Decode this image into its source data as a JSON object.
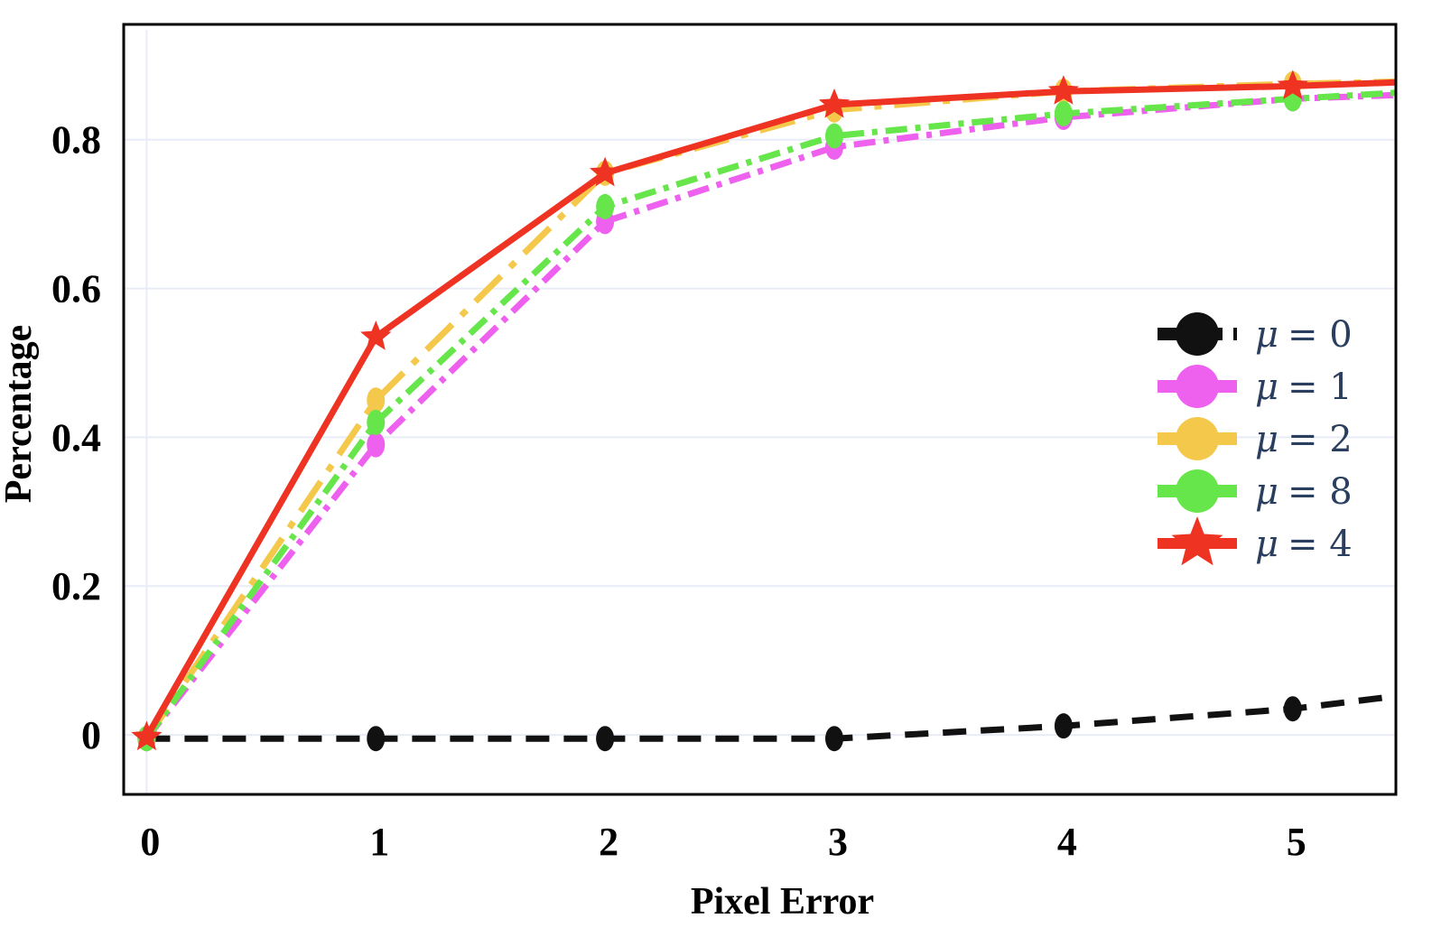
{
  "chart_data": {
    "type": "line",
    "title": "",
    "xlabel": "Pixel Error",
    "ylabel": "Percentage",
    "x": [
      0,
      1,
      2,
      3,
      4,
      5
    ],
    "xlim": [
      -0.1,
      5.45
    ],
    "ylim": [
      -0.08,
      0.955
    ],
    "x_ticks": [
      "0",
      "1",
      "2",
      "3",
      "4",
      "5"
    ],
    "y_ticks": [
      {
        "value": 0,
        "label": "0"
      },
      {
        "value": 0.2,
        "label": "0.2"
      },
      {
        "value": 0.4,
        "label": "0.4"
      },
      {
        "value": 0.6,
        "label": "0.6"
      },
      {
        "value": 0.8,
        "label": "0.8"
      }
    ],
    "grid": true,
    "legend_position": "right",
    "series": [
      {
        "name": "μ = 0",
        "legend_symbol": "μ",
        "legend_value": "= 0",
        "color": "#111111",
        "dash": "dash",
        "marker": "circle",
        "x": [
          0,
          1,
          2,
          3,
          4,
          5,
          5.45
        ],
        "values": [
          -0.005,
          -0.005,
          -0.005,
          -0.005,
          0.012,
          0.035,
          0.052
        ]
      },
      {
        "name": "μ = 1",
        "legend_symbol": "μ",
        "legend_value": "= 1",
        "color": "#ee60ee",
        "dash": "dashdot",
        "marker": "circle",
        "x": [
          0,
          1,
          2,
          3,
          4,
          5,
          5.45
        ],
        "values": [
          -0.005,
          0.39,
          0.69,
          0.79,
          0.83,
          0.855,
          0.86
        ]
      },
      {
        "name": "μ = 2",
        "legend_symbol": "μ",
        "legend_value": "= 2",
        "color": "#f4c84a",
        "dash": "longdashdot",
        "marker": "circle",
        "x": [
          0,
          1,
          2,
          3,
          4,
          5,
          5.45
        ],
        "values": [
          -0.005,
          0.45,
          0.755,
          0.84,
          0.865,
          0.875,
          0.878
        ]
      },
      {
        "name": "μ = 8",
        "legend_symbol": "μ",
        "legend_value": "= 8",
        "color": "#66e64a",
        "dash": "dashdot",
        "marker": "circle",
        "x": [
          0,
          1,
          2,
          3,
          4,
          5,
          5.45
        ],
        "values": [
          -0.005,
          0.42,
          0.71,
          0.805,
          0.835,
          0.855,
          0.863
        ]
      },
      {
        "name": "μ = 4",
        "legend_symbol": "μ",
        "legend_value": "= 4",
        "color": "#ee3322",
        "dash": "solid",
        "marker": "star",
        "x": [
          0,
          1,
          2,
          3,
          4,
          5,
          5.45
        ],
        "values": [
          -0.003,
          0.535,
          0.755,
          0.847,
          0.865,
          0.872,
          0.877
        ]
      }
    ]
  }
}
